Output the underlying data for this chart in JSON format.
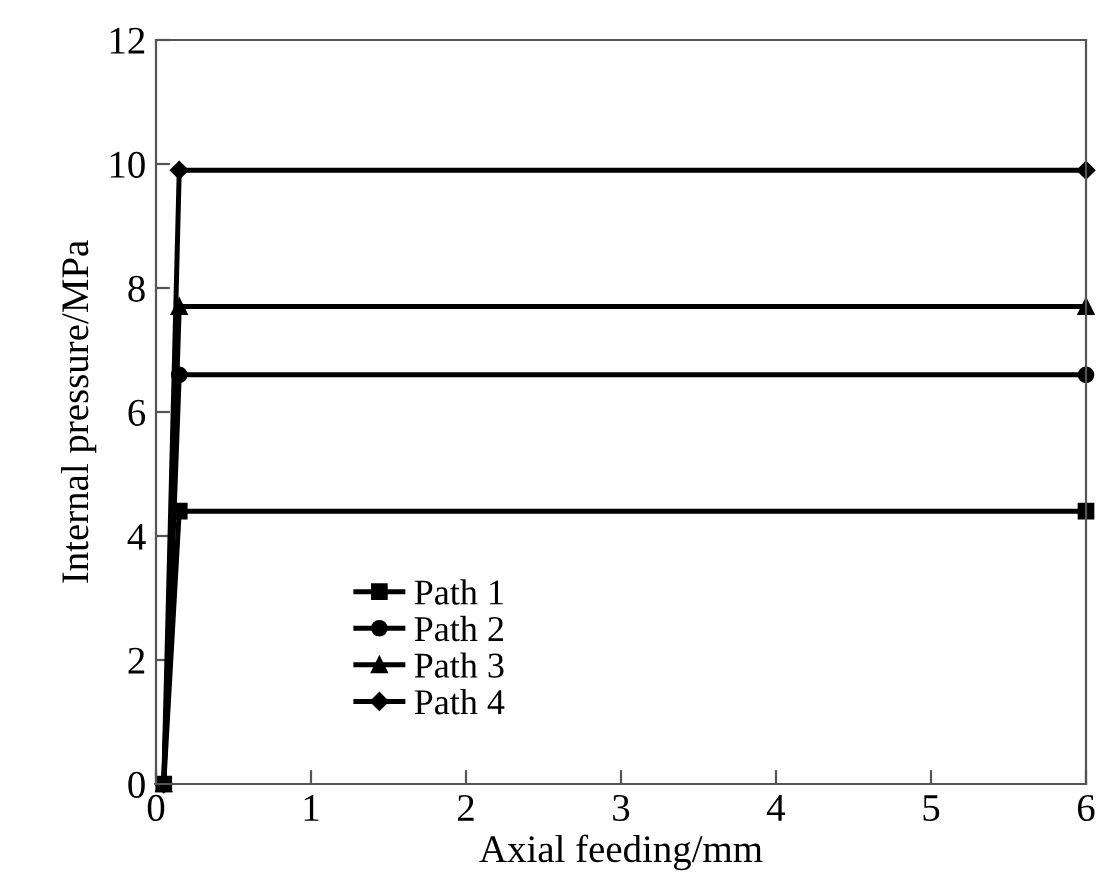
{
  "chart_data": {
    "type": "line",
    "xlabel": "Axial feeding/mm",
    "ylabel": "Internal pressure/MPa",
    "xlim": [
      0,
      6
    ],
    "ylim": [
      0,
      12
    ],
    "xticks": [
      0,
      1,
      2,
      3,
      4,
      5,
      6
    ],
    "yticks": [
      0,
      2,
      4,
      6,
      8,
      10,
      12
    ],
    "grid": false,
    "legend": "bottom left",
    "line_style": "solid",
    "series": [
      {
        "name": "Path 1",
        "color": "#000000",
        "marker": "square",
        "x": [
          0.05,
          0.15,
          6
        ],
        "values": [
          0,
          4.4,
          4.4
        ]
      },
      {
        "name": "Path 2",
        "color": "#000000",
        "marker": "circle",
        "x": [
          0.05,
          0.15,
          6
        ],
        "values": [
          0,
          6.6,
          6.6
        ]
      },
      {
        "name": "Path 3",
        "color": "#000000",
        "marker": "triangle",
        "x": [
          0.05,
          0.15,
          6
        ],
        "values": [
          0,
          7.7,
          7.7
        ]
      },
      {
        "name": "Path 4",
        "color": "#000000",
        "marker": "diamond",
        "x": [
          0.05,
          0.15,
          6
        ],
        "values": [
          0,
          9.9,
          9.9
        ]
      }
    ]
  }
}
